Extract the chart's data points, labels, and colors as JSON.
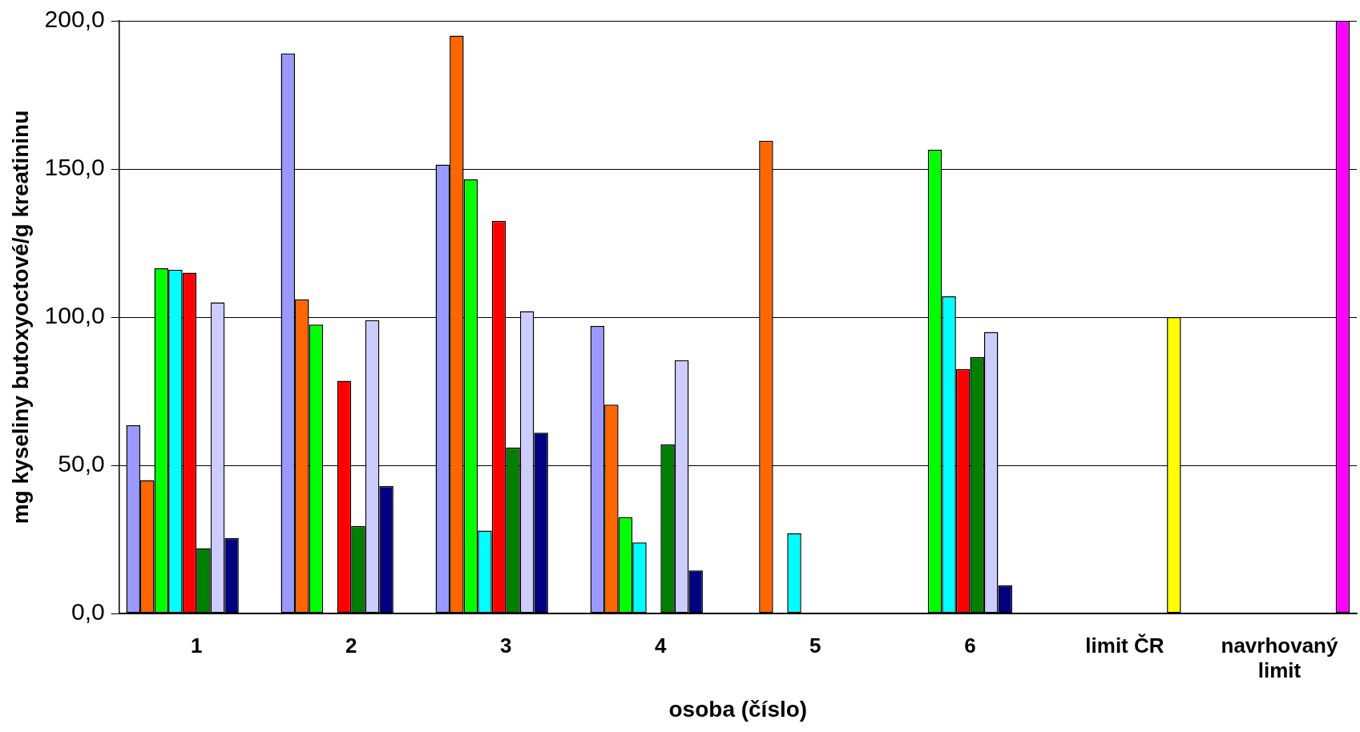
{
  "chart_data": {
    "type": "bar",
    "xlabel": "osoba (číslo)",
    "ylabel": "mg kyseliny butoxyoctové/g kreatininu",
    "categories": [
      "1",
      "2",
      "3",
      "4",
      "5",
      "6",
      "limit ČR",
      "navrhovaný limit"
    ],
    "ylim": [
      0,
      200
    ],
    "yticks": [
      {
        "value": 0,
        "label": "0,0"
      },
      {
        "value": 50,
        "label": "50,0"
      },
      {
        "value": 100,
        "label": "100,0"
      },
      {
        "value": 150,
        "label": "150,0"
      },
      {
        "value": 200,
        "label": "200,0"
      }
    ],
    "grid": "y",
    "legend": false,
    "series": [
      {
        "color": "#9999ff",
        "values": [
          63.5,
          189,
          151.5,
          97,
          null,
          null,
          null,
          null
        ]
      },
      {
        "color": "#ff6600",
        "values": [
          45,
          106,
          195,
          70.5,
          159.5,
          null,
          null,
          null
        ]
      },
      {
        "color": "#00ff00",
        "values": [
          116.5,
          97.5,
          146.5,
          32.5,
          null,
          156.5,
          null,
          null
        ]
      },
      {
        "color": "#00ffff",
        "values": [
          116,
          null,
          28,
          24,
          27,
          107,
          null,
          null
        ]
      },
      {
        "color": "#ff0000",
        "values": [
          115,
          78.5,
          132.5,
          null,
          null,
          82.5,
          null,
          null
        ]
      },
      {
        "color": "#008000",
        "values": [
          22,
          29.5,
          56,
          57,
          null,
          86.5,
          null,
          null
        ]
      },
      {
        "color": "#ccccff",
        "values": [
          105,
          99,
          102,
          85.5,
          null,
          95,
          null,
          null
        ]
      },
      {
        "color": "#000080",
        "values": [
          25.5,
          43,
          61,
          14.5,
          null,
          9.5,
          null,
          null
        ]
      },
      {
        "color": "#ffff00",
        "values": [
          null,
          null,
          null,
          null,
          null,
          null,
          100,
          null
        ]
      },
      {
        "color": "#ff00ff",
        "values": [
          null,
          null,
          null,
          null,
          null,
          null,
          null,
          200
        ]
      }
    ]
  }
}
